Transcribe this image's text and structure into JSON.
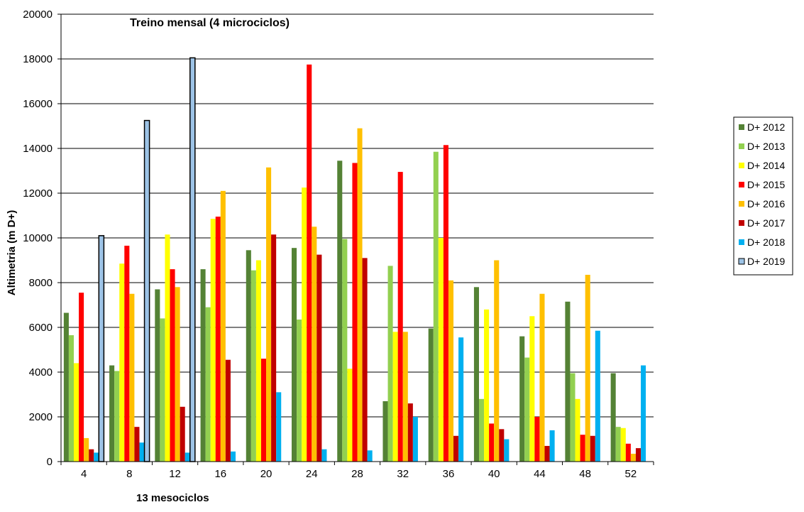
{
  "chart_data": {
    "type": "bar",
    "title": "Treino mensal (4 microciclos)",
    "xlabel": "13 mesociclos",
    "ylabel": "Altimetria (m D+)",
    "ylim": [
      0,
      20000
    ],
    "yticks": [
      0,
      2000,
      4000,
      6000,
      8000,
      10000,
      12000,
      14000,
      16000,
      18000,
      20000
    ],
    "grid": true,
    "legend_position": "right",
    "categories": [
      "4",
      "8",
      "12",
      "16",
      "20",
      "24",
      "28",
      "32",
      "36",
      "40",
      "44",
      "48",
      "52"
    ],
    "series": [
      {
        "name": "D+ 2012",
        "color": "#548235",
        "values": [
          6650,
          4300,
          7700,
          8600,
          9450,
          9550,
          13450,
          2700,
          5950,
          7800,
          5600,
          7150,
          3950
        ]
      },
      {
        "name": "D+ 2013",
        "color": "#92D050",
        "values": [
          5650,
          4050,
          6400,
          6900,
          8550,
          6350,
          9950,
          8750,
          13850,
          2800,
          4650,
          3950,
          1550
        ]
      },
      {
        "name": "D+ 2014",
        "color": "#FFFF00",
        "values": [
          4400,
          8850,
          10150,
          10850,
          9000,
          12250,
          4150,
          5800,
          10000,
          6800,
          6500,
          2800,
          1500
        ]
      },
      {
        "name": "D+ 2015",
        "color": "#FF0000",
        "values": [
          7550,
          9650,
          8600,
          10950,
          4600,
          17750,
          13350,
          12950,
          14150,
          1700,
          2000,
          1200,
          800
        ]
      },
      {
        "name": "D+ 2016",
        "color": "#FFC000",
        "values": [
          1050,
          7500,
          7800,
          12100,
          13150,
          10500,
          14900,
          5800,
          8100,
          9000,
          7500,
          8350,
          350
        ]
      },
      {
        "name": "D+ 2017",
        "color": "#C00000",
        "values": [
          550,
          1550,
          2450,
          4550,
          10150,
          9250,
          9100,
          2600,
          1150,
          1450,
          700,
          1150,
          600
        ]
      },
      {
        "name": "D+ 2018",
        "color": "#00B0F0",
        "values": [
          400,
          850,
          400,
          450,
          3100,
          550,
          500,
          2000,
          5550,
          1000,
          1400,
          5850,
          4300
        ]
      },
      {
        "name": "D+ 2019",
        "color": "#9DC3E6",
        "values": [
          10100,
          15250,
          18050,
          null,
          null,
          null,
          null,
          null,
          null,
          null,
          null,
          null,
          null
        ]
      }
    ]
  }
}
